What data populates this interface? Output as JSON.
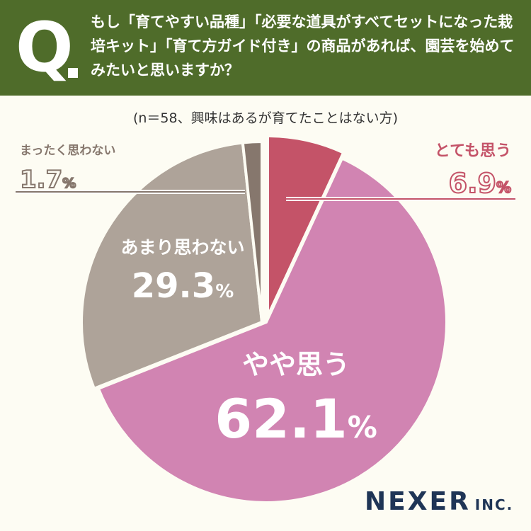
{
  "header": {
    "q_letter": "Q",
    "question": "もし「育てやすい品種」「必要な道具がすべてセットになった栽培キット」「育て方ガイド付き」の商品があれば、園芸を始めてみたいと思いますか？"
  },
  "sample_note": "(n＝58、興味はあるが育てたことはない方)",
  "brand": {
    "name": "NEXER",
    "suffix": "INC."
  },
  "colors": {
    "header_bg": "#4f6c2a",
    "background": "#fdfcf3"
  },
  "chart_data": {
    "type": "pie",
    "title": "",
    "start": "12 o'clock, clockwise",
    "unit": "%",
    "slices": [
      {
        "label": "とても思う",
        "value": 6.9,
        "value_text": "6.9",
        "color": "#c45368"
      },
      {
        "label": "やや思う",
        "value": 62.1,
        "value_text": "62.1",
        "color": "#d184b2"
      },
      {
        "label": "あまり思わない",
        "value": 29.3,
        "value_text": "29.3",
        "color": "#aea399"
      },
      {
        "label": "まったく思わない",
        "value": 1.7,
        "value_text": "1.7",
        "color": "#86776d"
      }
    ]
  }
}
